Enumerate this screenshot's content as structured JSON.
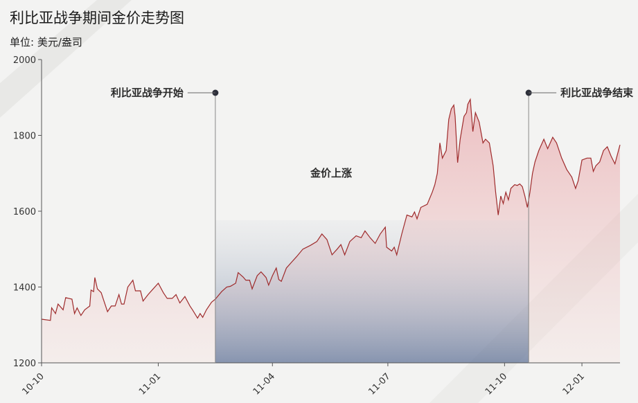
{
  "chart_data": {
    "type": "area",
    "title": "利比亚战争期间金价走势图",
    "subtitle": "单位: 美元/盎司",
    "x_axis_type": "date",
    "x_range": [
      "2010-10-01",
      "2011-12-31"
    ],
    "x_ticks": [
      {
        "date": "2010-10-01",
        "label": "10-10"
      },
      {
        "date": "2011-01-01",
        "label": "11-01"
      },
      {
        "date": "2011-04-01",
        "label": "11-04"
      },
      {
        "date": "2011-07-01",
        "label": "11-07"
      },
      {
        "date": "2011-10-01",
        "label": "11-10"
      },
      {
        "date": "2011-12-01",
        "label": "12-01"
      }
    ],
    "ylim": [
      1200,
      2000
    ],
    "y_ticks": [
      1200,
      1400,
      1600,
      1800,
      2000
    ],
    "grid": false,
    "series": [
      {
        "color": "#9e2a2b",
        "points": [
          [
            "2010-10-01",
            1315
          ],
          [
            "2010-10-08",
            1312
          ],
          [
            "2010-10-09",
            1345
          ],
          [
            "2010-10-12",
            1330
          ],
          [
            "2010-10-14",
            1355
          ],
          [
            "2010-10-18",
            1340
          ],
          [
            "2010-10-20",
            1372
          ],
          [
            "2010-10-25",
            1368
          ],
          [
            "2010-10-27",
            1330
          ],
          [
            "2010-10-29",
            1345
          ],
          [
            "2010-11-01",
            1325
          ],
          [
            "2010-11-04",
            1340
          ],
          [
            "2010-11-08",
            1350
          ],
          [
            "2010-11-09",
            1392
          ],
          [
            "2010-11-11",
            1388
          ],
          [
            "2010-11-12",
            1425
          ],
          [
            "2010-11-14",
            1395
          ],
          [
            "2010-11-17",
            1385
          ],
          [
            "2010-11-19",
            1365
          ],
          [
            "2010-11-22",
            1335
          ],
          [
            "2010-11-25",
            1350
          ],
          [
            "2010-11-28",
            1350
          ],
          [
            "2010-12-01",
            1380
          ],
          [
            "2010-12-03",
            1355
          ],
          [
            "2010-12-05",
            1355
          ],
          [
            "2010-12-08",
            1400
          ],
          [
            "2010-12-12",
            1418
          ],
          [
            "2010-12-14",
            1390
          ],
          [
            "2010-12-18",
            1390
          ],
          [
            "2010-12-20",
            1363
          ],
          [
            "2010-12-24",
            1380
          ],
          [
            "2010-12-28",
            1395
          ],
          [
            "2011-01-01",
            1410
          ],
          [
            "2011-01-05",
            1385
          ],
          [
            "2011-01-08",
            1370
          ],
          [
            "2011-01-12",
            1370
          ],
          [
            "2011-01-15",
            1380
          ],
          [
            "2011-01-18",
            1358
          ],
          [
            "2011-01-22",
            1375
          ],
          [
            "2011-01-26",
            1350
          ],
          [
            "2011-01-28",
            1340
          ],
          [
            "2011-02-01",
            1318
          ],
          [
            "2011-02-03",
            1330
          ],
          [
            "2011-02-05",
            1320
          ],
          [
            "2011-02-08",
            1340
          ],
          [
            "2011-02-12",
            1360
          ],
          [
            "2011-02-15",
            1368
          ],
          [
            "2011-02-20",
            1388
          ],
          [
            "2011-02-24",
            1400
          ],
          [
            "2011-02-27",
            1402
          ],
          [
            "2011-03-03",
            1410
          ],
          [
            "2011-03-05",
            1438
          ],
          [
            "2011-03-09",
            1426
          ],
          [
            "2011-03-11",
            1418
          ],
          [
            "2011-03-14",
            1418
          ],
          [
            "2011-03-16",
            1395
          ],
          [
            "2011-03-20",
            1430
          ],
          [
            "2011-03-23",
            1440
          ],
          [
            "2011-03-27",
            1425
          ],
          [
            "2011-03-29",
            1405
          ],
          [
            "2011-04-01",
            1430
          ],
          [
            "2011-04-04",
            1450
          ],
          [
            "2011-04-06",
            1420
          ],
          [
            "2011-04-08",
            1415
          ],
          [
            "2011-04-12",
            1450
          ],
          [
            "2011-04-16",
            1465
          ],
          [
            "2011-04-20",
            1480
          ],
          [
            "2011-04-25",
            1500
          ],
          [
            "2011-05-01",
            1510
          ],
          [
            "2011-05-06",
            1520
          ],
          [
            "2011-05-10",
            1540
          ],
          [
            "2011-05-14",
            1525
          ],
          [
            "2011-05-18",
            1485
          ],
          [
            "2011-05-22",
            1500
          ],
          [
            "2011-05-25",
            1512
          ],
          [
            "2011-05-28",
            1485
          ],
          [
            "2011-06-01",
            1520
          ],
          [
            "2011-06-06",
            1535
          ],
          [
            "2011-06-10",
            1530
          ],
          [
            "2011-06-13",
            1548
          ],
          [
            "2011-06-17",
            1530
          ],
          [
            "2011-06-21",
            1515
          ],
          [
            "2011-06-25",
            1540
          ],
          [
            "2011-06-29",
            1558
          ],
          [
            "2011-06-30",
            1505
          ],
          [
            "2011-07-04",
            1495
          ],
          [
            "2011-07-06",
            1505
          ],
          [
            "2011-07-08",
            1485
          ],
          [
            "2011-07-12",
            1540
          ],
          [
            "2011-07-16",
            1590
          ],
          [
            "2011-07-20",
            1585
          ],
          [
            "2011-07-22",
            1598
          ],
          [
            "2011-07-24",
            1580
          ],
          [
            "2011-07-27",
            1610
          ],
          [
            "2011-08-01",
            1618
          ],
          [
            "2011-08-05",
            1650
          ],
          [
            "2011-08-07",
            1670
          ],
          [
            "2011-08-09",
            1700
          ],
          [
            "2011-08-11",
            1780
          ],
          [
            "2011-08-13",
            1740
          ],
          [
            "2011-08-16",
            1760
          ],
          [
            "2011-08-18",
            1842
          ],
          [
            "2011-08-20",
            1870
          ],
          [
            "2011-08-22",
            1880
          ],
          [
            "2011-08-23",
            1850
          ],
          [
            "2011-08-25",
            1728
          ],
          [
            "2011-08-27",
            1790
          ],
          [
            "2011-08-30",
            1850
          ],
          [
            "2011-09-01",
            1860
          ],
          [
            "2011-09-02",
            1882
          ],
          [
            "2011-09-04",
            1895
          ],
          [
            "2011-09-06",
            1810
          ],
          [
            "2011-09-08",
            1860
          ],
          [
            "2011-09-11",
            1835
          ],
          [
            "2011-09-14",
            1780
          ],
          [
            "2011-09-16",
            1790
          ],
          [
            "2011-09-19",
            1780
          ],
          [
            "2011-09-22",
            1720
          ],
          [
            "2011-09-24",
            1650
          ],
          [
            "2011-09-26",
            1590
          ],
          [
            "2011-09-28",
            1640
          ],
          [
            "2011-09-30",
            1620
          ],
          [
            "2011-10-02",
            1650
          ],
          [
            "2011-10-04",
            1630
          ],
          [
            "2011-10-06",
            1660
          ],
          [
            "2011-10-09",
            1670
          ],
          [
            "2011-10-11",
            1668
          ],
          [
            "2011-10-13",
            1672
          ],
          [
            "2011-10-15",
            1665
          ],
          [
            "2011-10-17",
            1640
          ],
          [
            "2011-10-19",
            1610
          ],
          [
            "2011-10-21",
            1650
          ],
          [
            "2011-10-23",
            1700
          ],
          [
            "2011-10-25",
            1730
          ],
          [
            "2011-10-28",
            1760
          ],
          [
            "2011-11-01",
            1790
          ],
          [
            "2011-11-04",
            1765
          ],
          [
            "2011-11-08",
            1795
          ],
          [
            "2011-11-11",
            1780
          ],
          [
            "2011-11-15",
            1740
          ],
          [
            "2011-11-19",
            1710
          ],
          [
            "2011-11-23",
            1690
          ],
          [
            "2011-11-26",
            1660
          ],
          [
            "2011-11-28",
            1680
          ],
          [
            "2011-12-01",
            1735
          ],
          [
            "2011-12-05",
            1740
          ],
          [
            "2011-12-08",
            1740
          ],
          [
            "2011-12-10",
            1705
          ],
          [
            "2011-12-12",
            1720
          ],
          [
            "2011-12-15",
            1730
          ],
          [
            "2011-12-18",
            1760
          ],
          [
            "2011-12-21",
            1770
          ],
          [
            "2011-12-24",
            1745
          ],
          [
            "2011-12-27",
            1725
          ],
          [
            "2011-12-31",
            1775
          ]
        ]
      }
    ],
    "events": [
      {
        "label": "利比亚战争开始",
        "date": "2011-02-15"
      },
      {
        "label": "利比亚战争结束",
        "date": "2011-10-20"
      }
    ],
    "shaded_region": {
      "from": "2011-02-15",
      "to": "2011-10-20",
      "label": "金价上涨"
    }
  }
}
